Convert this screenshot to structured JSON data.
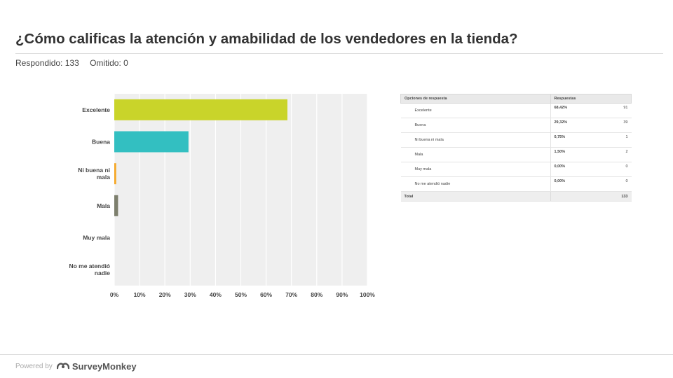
{
  "title": "¿Cómo calificas la atención y amabilidad de los vendedores en la tienda?",
  "answered_label": "Respondido: 133",
  "skipped_label": "Omitido: 0",
  "footer": {
    "powered_by": "Powered by",
    "brand": "SurveyMonkey"
  },
  "table": {
    "header_option": "Opciones de respuesta",
    "header_responses": "Respuestas",
    "rows": [
      {
        "option": "Excelente",
        "percent": "68,42%",
        "count": "91"
      },
      {
        "option": "Buena",
        "percent": "29,32%",
        "count": "39"
      },
      {
        "option": "Ni buena ni mala",
        "percent": "0,75%",
        "count": "1"
      },
      {
        "option": "Mala",
        "percent": "1,50%",
        "count": "2"
      },
      {
        "option": "Muy mala",
        "percent": "0,00%",
        "count": "0"
      },
      {
        "option": "No me atendió nadie",
        "percent": "0,00%",
        "count": "0"
      }
    ],
    "total_label": "Total",
    "total_count": "133"
  },
  "chart_data": {
    "type": "bar",
    "orientation": "horizontal",
    "categories": [
      "Excelente",
      "Buena",
      "Ni buena ni mala",
      "Mala",
      "Muy mala",
      "No me atendió nadie"
    ],
    "category_lines": [
      [
        "Excelente"
      ],
      [
        "Buena"
      ],
      [
        "Ni buena ni",
        "mala"
      ],
      [
        "Mala"
      ],
      [
        "Muy mala"
      ],
      [
        "No me atendió",
        "nadie"
      ]
    ],
    "values": [
      68.42,
      29.32,
      0.75,
      1.5,
      0.0,
      0.0
    ],
    "colors": [
      "#c9d42a",
      "#33bfc1",
      "#f5a623",
      "#7d7f6d",
      "#999999",
      "#999999"
    ],
    "xlim": [
      0,
      100
    ],
    "xticks": [
      "0%",
      "10%",
      "20%",
      "30%",
      "40%",
      "50%",
      "60%",
      "70%",
      "80%",
      "90%",
      "100%"
    ],
    "grid": true,
    "background": "#efefef"
  }
}
